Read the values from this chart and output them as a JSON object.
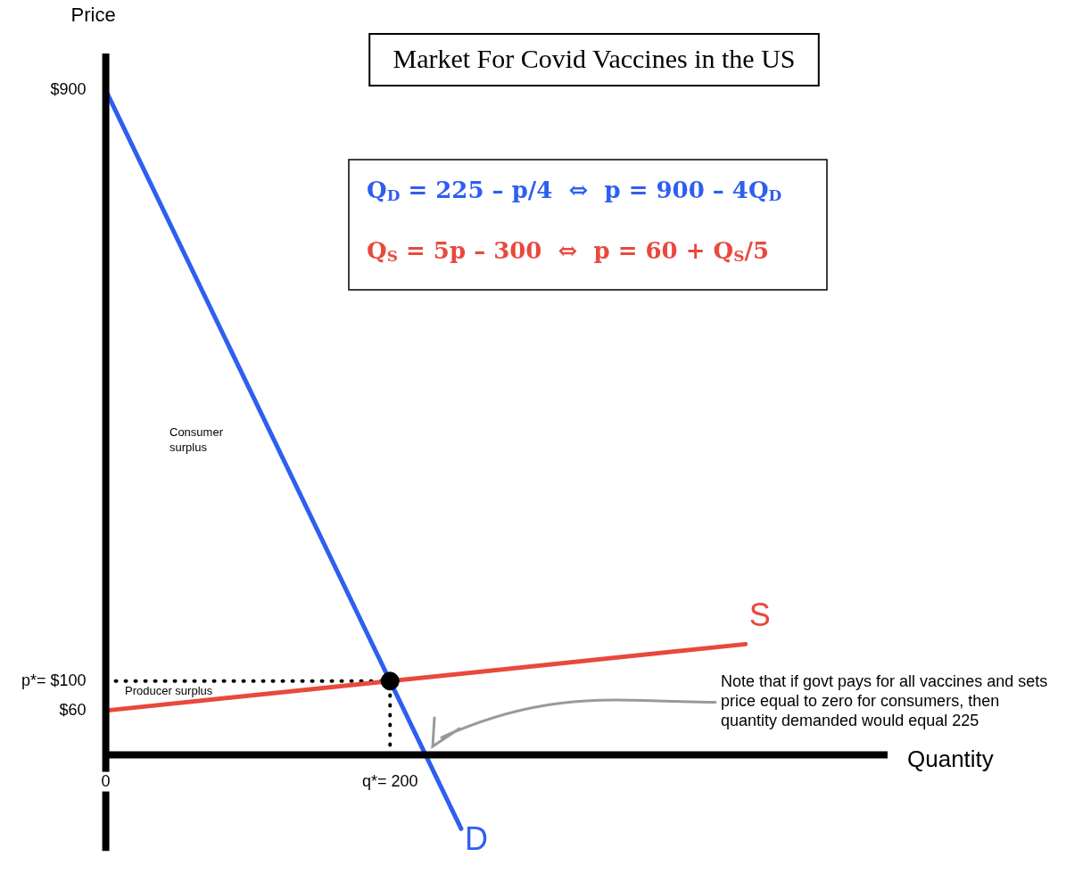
{
  "chart_data": {
    "type": "line",
    "title": "Market For Covid Vaccines in the US",
    "xlabel": "Quantity",
    "ylabel": "Price",
    "xlim": [
      0,
      550
    ],
    "ylim": [
      -130,
      950
    ],
    "xticks": [
      0,
      {
        "value": 200,
        "label": "q*= 200"
      }
    ],
    "yticks": [
      {
        "value": 60,
        "label": "$60"
      },
      {
        "value": 100,
        "label": "p*= $100"
      },
      {
        "value": 900,
        "label": "$900"
      }
    ],
    "grid": false,
    "legend": false,
    "line_style": "solid",
    "marker": "none",
    "series": [
      {
        "name": "D",
        "color": "#2f5ff0",
        "x": [
          0,
          225,
          250
        ],
        "values": [
          900,
          0,
          -100
        ]
      },
      {
        "name": "S",
        "color": "#e8493d",
        "x": [
          0,
          450
        ],
        "values": [
          60,
          150
        ]
      },
      {
        "type": "scatter",
        "color": "#000000",
        "x": [
          200
        ],
        "values": [
          100
        ],
        "marker": "circle"
      },
      {
        "color": "#000000",
        "x": [
          0,
          200
        ],
        "values": [
          100,
          100
        ],
        "line_style": "dotted"
      },
      {
        "color": "#000000",
        "x": [
          200,
          200
        ],
        "values": [
          0,
          100
        ],
        "line_style": "dotted"
      }
    ],
    "annotations": [
      "Q$_{D}$ = 225 – p/4  ⇔  p = 900 – 4Q$_{D}$",
      "Q$_{S}$ = 5p – 300  ⇔  p = 60 + Q$_{S}$/5",
      "Consumer surplus",
      "Producer surplus",
      "Note that if govt pays for all vaccines and sets price equal to zero for consumers, then quantity demanded would equal 225"
    ]
  }
}
